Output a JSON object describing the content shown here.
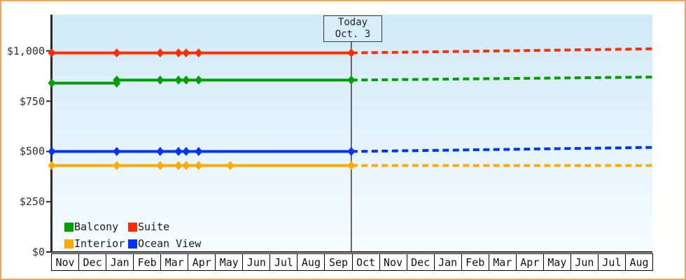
{
  "window": {
    "border_color": "#eaa85e",
    "background": "#ffffff"
  },
  "today_box": {
    "line1": "Today",
    "line2": "Oct. 3"
  },
  "chart_data": {
    "type": "line",
    "title": "",
    "xlabel": "",
    "ylabel": "",
    "ylim": [
      0,
      1180
    ],
    "grid": false,
    "legend_position": "bottom-left",
    "plot_bg_top": "#cfeaf8",
    "plot_bg_bottom": "#f7fcfe",
    "axis_color": "#2b2b2b",
    "today_line_color": "#3a3a3a",
    "y_ticks": [
      {
        "v": 0,
        "label": "$0"
      },
      {
        "v": 250,
        "label": "$250"
      },
      {
        "v": 500,
        "label": "$500"
      },
      {
        "v": 750,
        "label": "$750"
      },
      {
        "v": 1000,
        "label": "$1,000"
      }
    ],
    "months": [
      "Nov",
      "Dec",
      "Jan",
      "Feb",
      "Mar",
      "Apr",
      "May",
      "Jun",
      "Jul",
      "Aug",
      "Sep",
      "Oct",
      "Nov",
      "Dec",
      "Jan",
      "Feb",
      "Mar",
      "Apr",
      "May",
      "Jun",
      "Jul",
      "Aug"
    ],
    "months_total": 22,
    "today_m": 10.97,
    "series": [
      {
        "name": "Balcony",
        "color": "#00a000",
        "history": [
          [
            0,
            840
          ],
          [
            2.38,
            840
          ],
          [
            2.38,
            855
          ],
          [
            10.97,
            855
          ]
        ],
        "forecast": [
          [
            10.97,
            855
          ],
          [
            22,
            870
          ]
        ],
        "markers": [
          [
            0,
            840
          ],
          [
            2.38,
            840
          ],
          [
            2.38,
            855
          ],
          [
            3.97,
            855
          ],
          [
            4.64,
            855
          ],
          [
            4.92,
            855
          ],
          [
            5.38,
            855
          ],
          [
            10.97,
            855
          ]
        ]
      },
      {
        "name": "Suite",
        "color": "#ff2d00",
        "history": [
          [
            0,
            990
          ],
          [
            10.97,
            990
          ]
        ],
        "forecast": [
          [
            10.97,
            990
          ],
          [
            22,
            1010
          ]
        ],
        "markers": [
          [
            0,
            990
          ],
          [
            2.38,
            990
          ],
          [
            3.97,
            990
          ],
          [
            4.64,
            990
          ],
          [
            4.92,
            990
          ],
          [
            5.38,
            990
          ],
          [
            10.97,
            990
          ]
        ]
      },
      {
        "name": "Interior",
        "color": "#ffaa00",
        "history": [
          [
            0,
            430
          ],
          [
            10.97,
            430
          ]
        ],
        "forecast": [
          [
            10.97,
            430
          ],
          [
            22,
            430
          ]
        ],
        "markers": [
          [
            0,
            430
          ],
          [
            2.38,
            430
          ],
          [
            3.97,
            430
          ],
          [
            4.64,
            430
          ],
          [
            4.92,
            430
          ],
          [
            5.38,
            430
          ],
          [
            6.54,
            430
          ],
          [
            10.97,
            430
          ]
        ]
      },
      {
        "name": "Ocean View",
        "color": "#0033ff",
        "history": [
          [
            0,
            500
          ],
          [
            10.97,
            500
          ]
        ],
        "forecast": [
          [
            10.97,
            500
          ],
          [
            22,
            520
          ]
        ],
        "markers": [
          [
            0,
            500
          ],
          [
            2.38,
            500
          ],
          [
            3.97,
            500
          ],
          [
            4.64,
            500
          ],
          [
            4.92,
            500
          ],
          [
            5.38,
            500
          ],
          [
            10.97,
            500
          ]
        ]
      }
    ],
    "legend_rows": [
      [
        "Balcony",
        "Suite"
      ],
      [
        "Interior",
        "Ocean View"
      ]
    ]
  }
}
